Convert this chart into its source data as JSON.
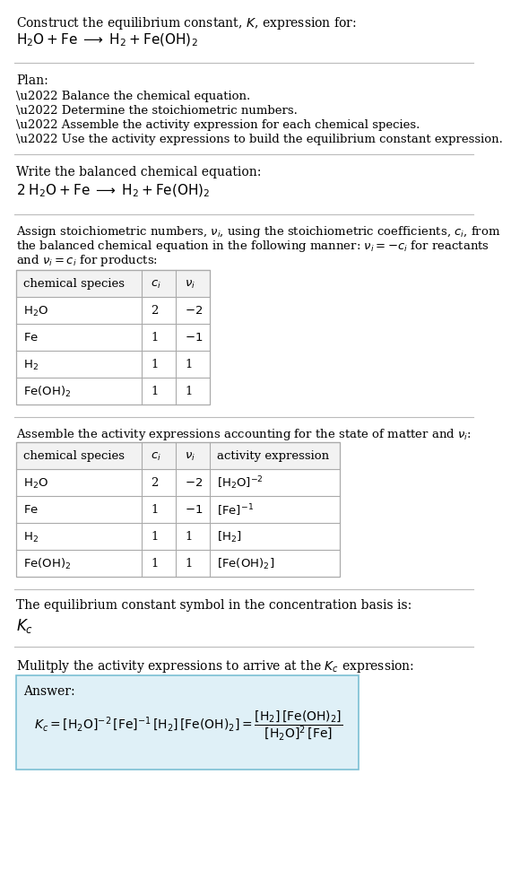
{
  "bg_color": "#ffffff",
  "text_color": "#000000",
  "table_line_color": "#aaaaaa",
  "answer_box_color": "#dff0f7",
  "answer_box_edge": "#7bbfd4",
  "title_line1": "Construct the equilibrium constant, $K$, expression for:",
  "title_eq": "$\\mathrm{H_2O + Fe} \\;\\longrightarrow\\; \\mathrm{H_2 + Fe(OH)_2}$",
  "plan_header": "Plan:",
  "plan_items": [
    "\\u2022 Balance the chemical equation.",
    "\\u2022 Determine the stoichiometric numbers.",
    "\\u2022 Assemble the activity expression for each chemical species.",
    "\\u2022 Use the activity expressions to build the equilibrium constant expression."
  ],
  "balanced_header": "Write the balanced chemical equation:",
  "balanced_eq": "$\\mathrm{2\\;H_2O + Fe} \\;\\longrightarrow\\; \\mathrm{H_2 + Fe(OH)_2}$",
  "stoich_text": [
    "Assign stoichiometric numbers, $\\nu_i$, using the stoichiometric coefficients, $c_i$, from",
    "the balanced chemical equation in the following manner: $\\nu_i = -c_i$ for reactants",
    "and $\\nu_i = c_i$ for products:"
  ],
  "table1_cols": [
    "chemical species",
    "$c_i$",
    "$\\nu_i$"
  ],
  "table1_rows": [
    [
      "$\\mathrm{H_2O}$",
      "2",
      "$-2$"
    ],
    [
      "$\\mathrm{Fe}$",
      "1",
      "$-1$"
    ],
    [
      "$\\mathrm{H_2}$",
      "1",
      "1"
    ],
    [
      "$\\mathrm{Fe(OH)_2}$",
      "1",
      "1"
    ]
  ],
  "activity_text": "Assemble the activity expressions accounting for the state of matter and $\\nu_i$:",
  "table2_cols": [
    "chemical species",
    "$c_i$",
    "$\\nu_i$",
    "activity expression"
  ],
  "table2_rows": [
    [
      "$\\mathrm{H_2O}$",
      "2",
      "$-2$",
      "$[\\mathrm{H_2O}]^{-2}$"
    ],
    [
      "$\\mathrm{Fe}$",
      "1",
      "$-1$",
      "$[\\mathrm{Fe}]^{-1}$"
    ],
    [
      "$\\mathrm{H_2}$",
      "1",
      "1",
      "$[\\mathrm{H_2}]$"
    ],
    [
      "$\\mathrm{Fe(OH)_2}$",
      "1",
      "1",
      "$[\\mathrm{Fe(OH)_2}]$"
    ]
  ],
  "kc_header": "The equilibrium constant symbol in the concentration basis is:",
  "kc_symbol": "$K_c$",
  "multiply_header": "Mulitply the activity expressions to arrive at the $K_c$ expression:",
  "answer_label": "Answer:",
  "answer_eq": "$K_c = [\\mathrm{H_2O}]^{-2}\\,[\\mathrm{Fe}]^{-1}\\,[\\mathrm{H_2}]\\,[\\mathrm{Fe(OH)_2}] = \\dfrac{[\\mathrm{H_2}]\\,[\\mathrm{Fe(OH)_2}]}{[\\mathrm{H_2O}]^2\\,[\\mathrm{Fe}]}$"
}
